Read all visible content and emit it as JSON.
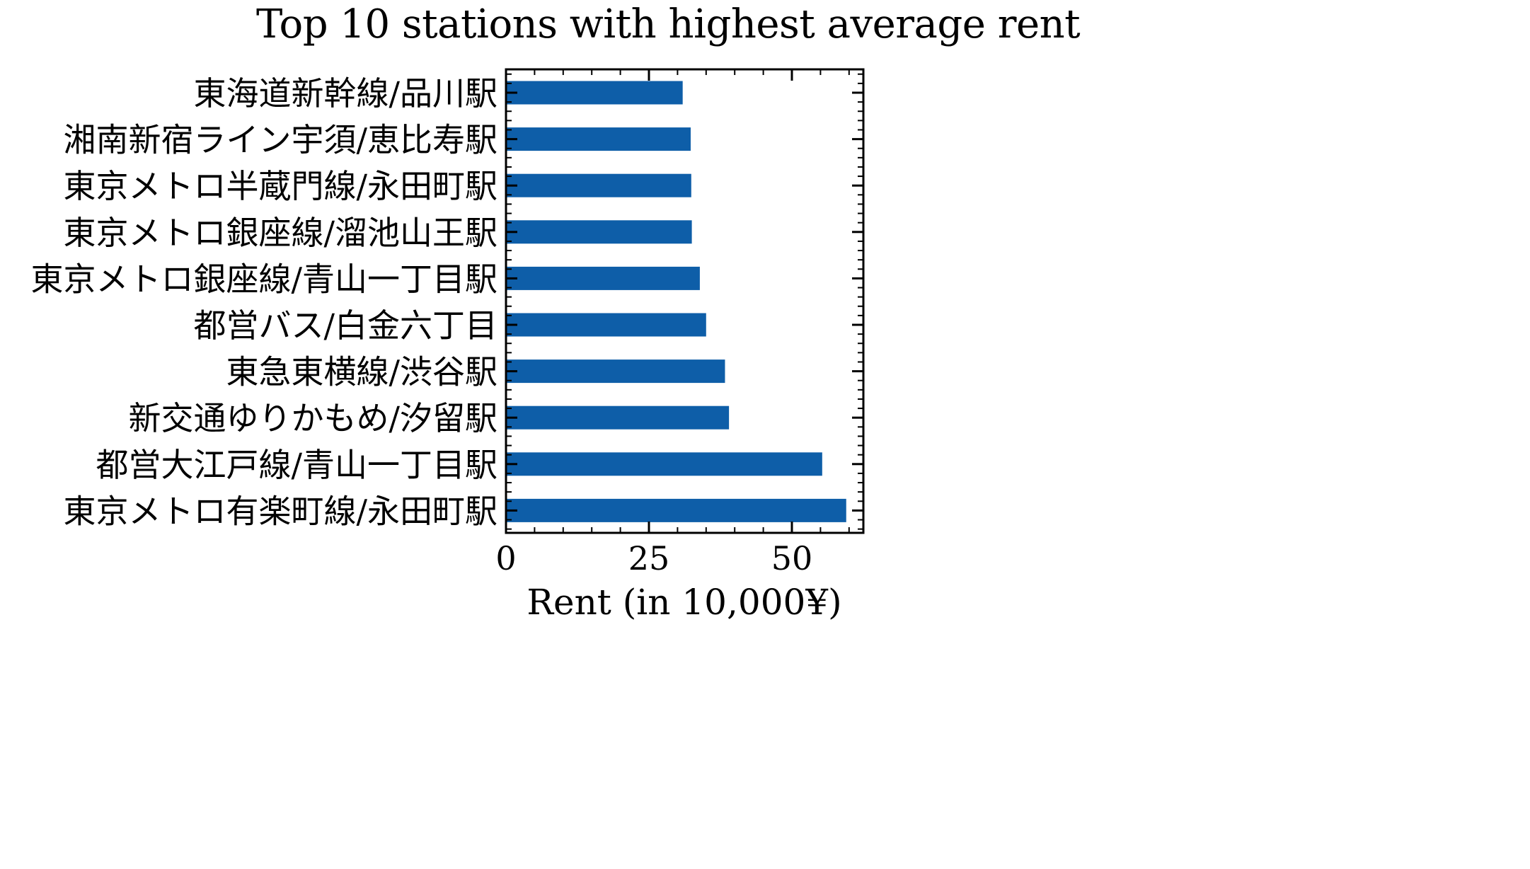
{
  "chart_data": {
    "type": "bar",
    "orientation": "horizontal",
    "title": "Top 10 stations with highest average rent",
    "xlabel": "Rent (in 10,000¥)",
    "ylabel": "",
    "categories": [
      "東海道新幹線/品川駅",
      "湘南新宿ライン宇須/恵比寿駅",
      "東京メトロ半蔵門線/永田町駅",
      "東京メトロ銀座線/溜池山王駅",
      "東京メトロ銀座線/青山一丁目駅",
      "都営バス/白金六丁目",
      "東急東横線/渋谷駅",
      "新交通ゆりかもめ/汐留駅",
      "都営大江戸線/青山一丁目駅",
      "東京メトロ有楽町線/永田町駅"
    ],
    "values": [
      30.9,
      32.3,
      32.4,
      32.5,
      33.9,
      35.0,
      38.3,
      39.0,
      55.3,
      59.5
    ],
    "xlim": [
      0,
      62.5
    ],
    "xticks": [
      0,
      25,
      50
    ],
    "bar_color": "#0e5ea8",
    "grid": false,
    "legend": "none"
  }
}
